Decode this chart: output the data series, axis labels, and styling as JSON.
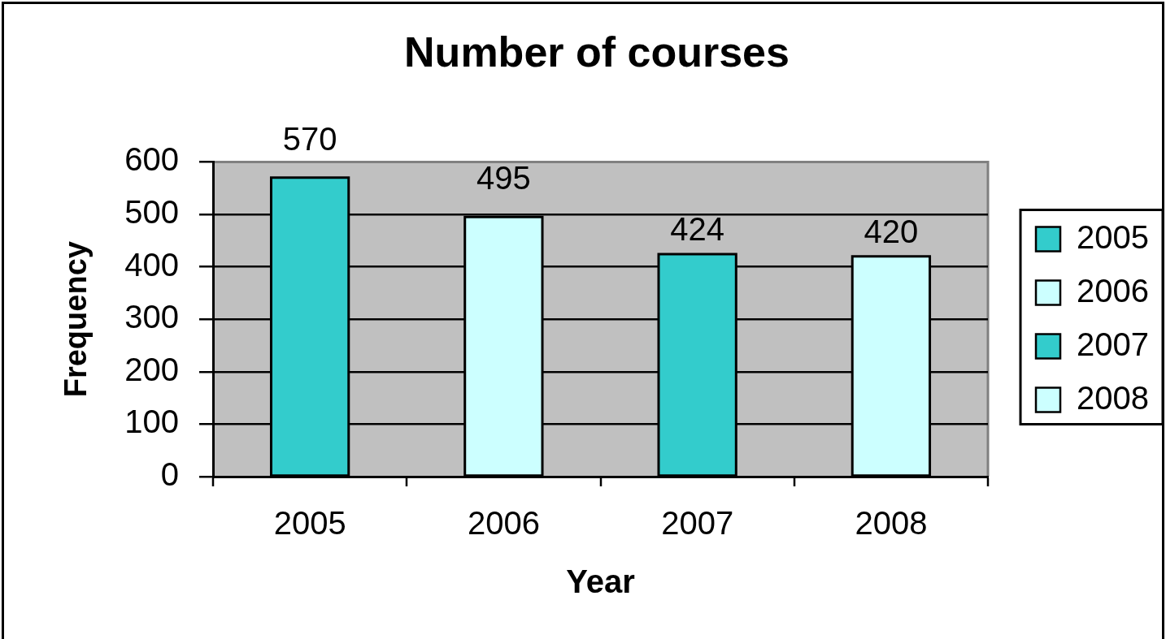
{
  "chart_data": {
    "type": "bar",
    "title": "Number of courses",
    "xlabel": "Year",
    "ylabel": "Frequency",
    "categories": [
      "2005",
      "2006",
      "2007",
      "2008"
    ],
    "series": [
      {
        "name": "2005",
        "color": "#33cccc",
        "values": [
          570,
          null,
          null,
          null
        ]
      },
      {
        "name": "2006",
        "color": "#ccffff",
        "values": [
          null,
          495,
          null,
          null
        ]
      },
      {
        "name": "2007",
        "color": "#33cccc",
        "values": [
          null,
          null,
          424,
          null
        ]
      },
      {
        "name": "2008",
        "color": "#ccffff",
        "values": [
          null,
          null,
          null,
          420
        ]
      }
    ],
    "ylim": [
      0,
      600
    ],
    "yticks": [
      0,
      100,
      200,
      300,
      400,
      500,
      600
    ],
    "grid": "y",
    "data_labels": true,
    "legend": "right"
  }
}
